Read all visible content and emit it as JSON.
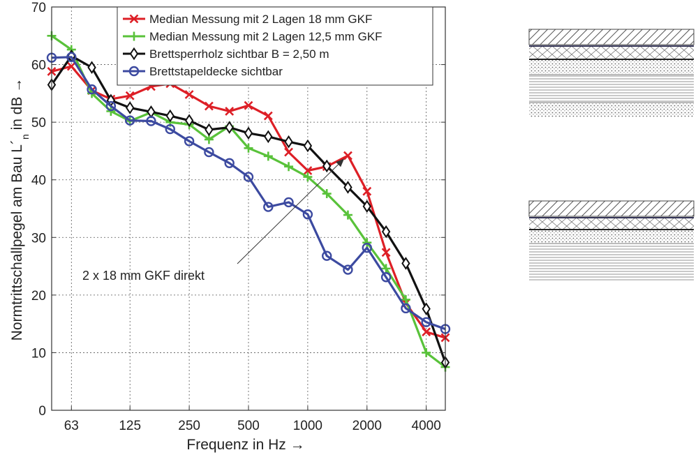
{
  "chart_data": {
    "type": "line",
    "xlabel": "Frequenz in Hz →",
    "ylabel": "Normtrittschallpegel am Bau L´",
    "ylabel_sub": "n",
    "ylabel_suffix": " in dB →",
    "x_tick_labels": [
      "63",
      "125",
      "250",
      "500",
      "1000",
      "2000",
      "4000"
    ],
    "x_tick_values": [
      63,
      125,
      250,
      500,
      1000,
      2000,
      4000
    ],
    "xlim": [
      50,
      5000
    ],
    "ylim": [
      0,
      70
    ],
    "y_ticks": [
      0,
      10,
      20,
      30,
      40,
      50,
      60,
      70
    ],
    "grid": true,
    "legend_position": "top-center",
    "x": [
      50,
      63,
      80,
      100,
      125,
      160,
      200,
      250,
      315,
      400,
      500,
      630,
      800,
      1000,
      1250,
      1600,
      2000,
      2500,
      3150,
      4000,
      5000
    ],
    "series": [
      {
        "name": "Median Messung mit 2 Lagen 18 mm GKF",
        "color": "#dd1f26",
        "marker": "x",
        "values": [
          58.8,
          59.7,
          55.5,
          54.0,
          54.6,
          56.2,
          56.7,
          54.8,
          52.8,
          51.9,
          52.9,
          51.1,
          44.8,
          41.6,
          42.3,
          44.2,
          38.0,
          27.4,
          18.6,
          13.6,
          12.6
        ]
      },
      {
        "name": "Median Messung mit 2 Lagen 12,5 mm GKF",
        "color": "#59c23a",
        "marker": "plus",
        "values": [
          65.0,
          62.6,
          55.0,
          51.9,
          50.2,
          51.7,
          50.0,
          49.6,
          47.0,
          49.3,
          45.5,
          44.1,
          42.3,
          40.5,
          37.6,
          33.9,
          29.1,
          24.6,
          19.2,
          10.0,
          7.5
        ]
      },
      {
        "name": "Brettsperrholz sichtbar B = 2,50 m",
        "color": "#111111",
        "marker": "diamond",
        "values": [
          56.5,
          61.5,
          59.5,
          53.8,
          52.5,
          51.8,
          51.1,
          50.3,
          48.7,
          49.1,
          48.1,
          47.5,
          46.6,
          45.9,
          42.4,
          38.7,
          35.4,
          31.0,
          25.5,
          17.6,
          8.3
        ]
      },
      {
        "name": "Brettstapeldecke sichtbar",
        "color": "#3c4aa0",
        "marker": "circle",
        "values": [
          61.2,
          61.3,
          55.7,
          52.8,
          50.3,
          50.2,
          48.8,
          46.7,
          44.8,
          42.9,
          40.5,
          35.3,
          36.1,
          34.0,
          26.8,
          24.4,
          28.2,
          23.1,
          17.7,
          15.3,
          14.1
        ]
      }
    ],
    "annotations": [
      {
        "text": "2 x 18 mm GKF direkt",
        "points_to_x": 1600,
        "points_to_y": 44.2
      }
    ]
  }
}
